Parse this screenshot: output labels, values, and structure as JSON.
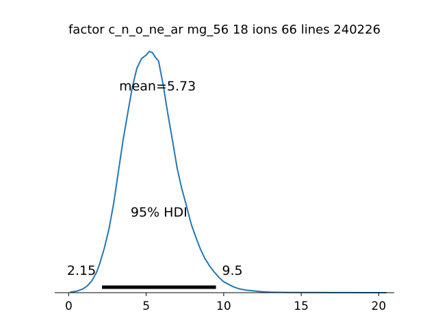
{
  "chart_data": {
    "type": "area",
    "title": "factor c_n_o_ne_ar mg_56 18 ions 66 lines  240226",
    "mean_label": "mean=5.73",
    "hdi_label": "95% HDI",
    "hdi_low_label": "2.15",
    "hdi_high_label": "9.5",
    "hdi": [
      2.15,
      9.5
    ],
    "xlim": [
      -0.9,
      21.0
    ],
    "x_ticks": [
      0,
      5,
      10,
      15,
      20
    ],
    "x_tick_labels": [
      "0",
      "5",
      "10",
      "15",
      "20"
    ],
    "y_axis_visible": false,
    "grid": false,
    "colors": {
      "line": "#1f77b4",
      "hdi_bar": "#000000"
    },
    "series": [
      {
        "x": [
          0.1,
          0.5,
          0.9,
          1.2,
          1.5,
          1.8,
          2.0,
          2.3,
          2.6,
          2.9,
          3.2,
          3.5,
          3.8,
          4.1,
          4.4,
          4.7,
          5.0,
          5.2,
          5.4,
          5.6,
          5.8,
          6.1,
          6.4,
          6.7,
          7.0,
          7.3,
          7.6,
          7.9,
          8.2,
          8.5,
          8.8,
          9.1,
          9.4,
          9.7,
          10.0,
          10.3,
          10.6,
          11.0,
          11.5,
          12.0,
          12.5,
          13.0,
          14.0,
          15.0,
          16.0,
          17.0,
          18.0,
          19.0,
          20.0,
          20.5
        ],
        "y": [
          0.002,
          0.006,
          0.015,
          0.028,
          0.05,
          0.085,
          0.12,
          0.185,
          0.265,
          0.37,
          0.5,
          0.63,
          0.74,
          0.85,
          0.93,
          0.97,
          0.985,
          1.0,
          0.995,
          0.975,
          0.96,
          0.86,
          0.74,
          0.63,
          0.515,
          0.43,
          0.36,
          0.285,
          0.23,
          0.18,
          0.14,
          0.11,
          0.085,
          0.063,
          0.045,
          0.035,
          0.025,
          0.016,
          0.01,
          0.007,
          0.004,
          0.002,
          0.0012,
          0.0008,
          0.0005,
          0.0003,
          0.0002,
          0.0001,
          0.0,
          0.0
        ]
      }
    ]
  }
}
